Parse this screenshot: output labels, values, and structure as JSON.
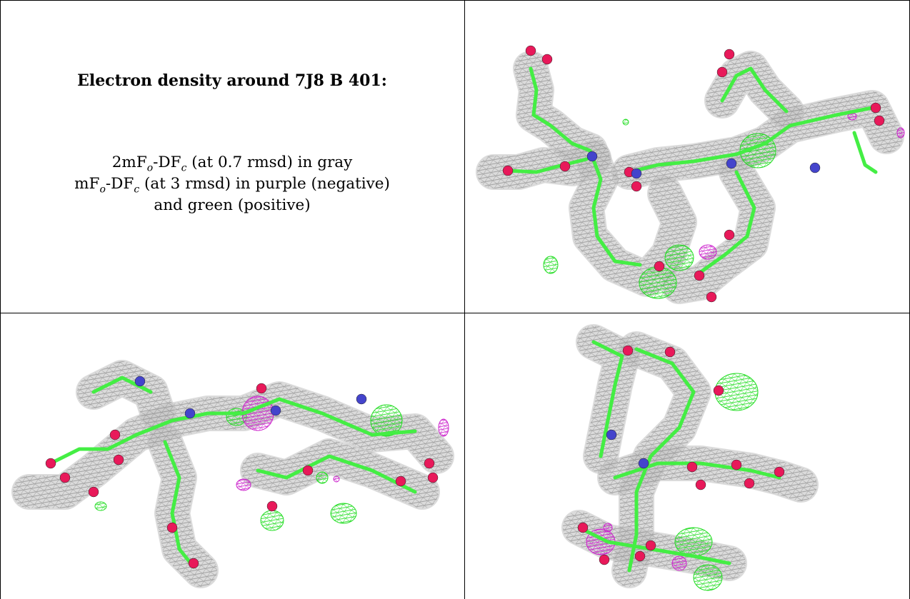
{
  "caption": {
    "title": "Electron density around 7J8 B 401:",
    "line1": {
      "prefix": "2mF",
      "sub1": "o",
      "mid": "-DF",
      "sub2": "c",
      "suffix": " (at 0.7 rmsd) in gray"
    },
    "line2": {
      "prefix": "mF",
      "sub1": "o",
      "mid": "-DF",
      "sub2": "c",
      "suffix": " (at 3 rmsd) in purple (negative)"
    },
    "line3": "and green (positive)"
  },
  "colors": {
    "mesh_2fofc": "#9a9a9a",
    "mesh_positive": "#22dd22",
    "mesh_negative": "#cc22cc",
    "carbon": "#44ee44",
    "oxygen": "#e8195a",
    "nitrogen": "#4444cc"
  },
  "panels": [
    {
      "name": "top-right-view"
    },
    {
      "name": "bottom-left-view"
    },
    {
      "name": "bottom-right-view"
    }
  ]
}
